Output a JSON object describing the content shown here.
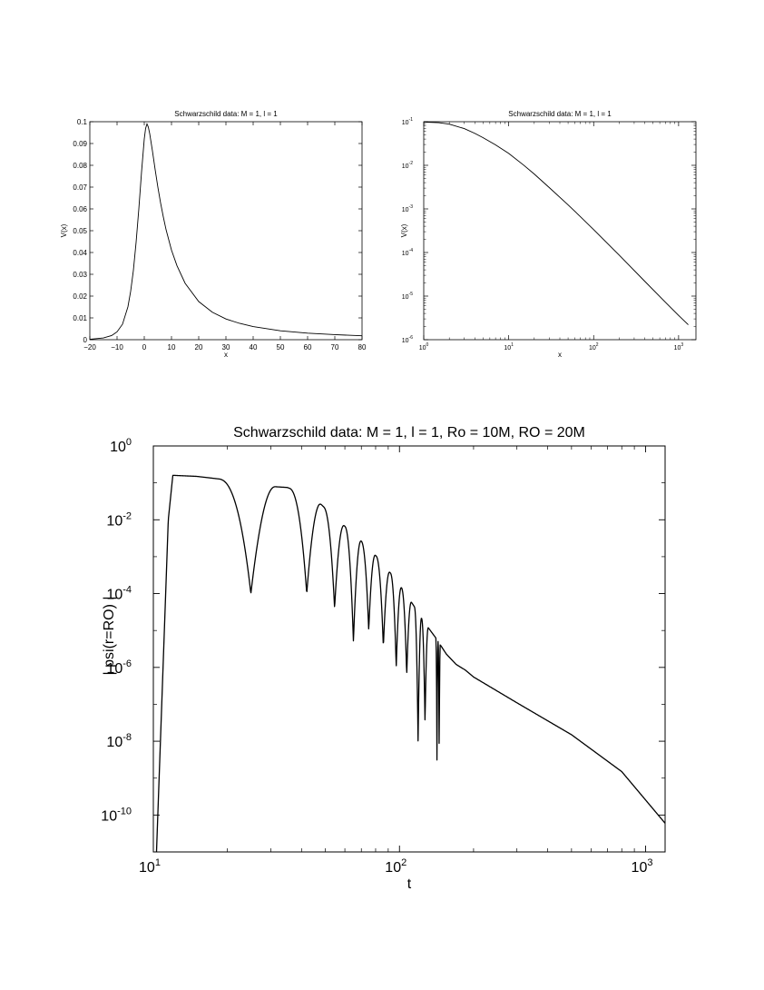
{
  "chart_data": [
    {
      "type": "line",
      "title": "Schwarzschild data: M = 1, l = 1",
      "xlabel": "x",
      "ylabel": "V(x)",
      "xscale": "linear",
      "yscale": "linear",
      "xlim": [
        -20,
        80
      ],
      "ylim": [
        0,
        0.1
      ],
      "xticks": [
        "−20",
        "−10",
        "0",
        "10",
        "20",
        "30",
        "40",
        "50",
        "60",
        "70",
        "80"
      ],
      "yticks": [
        "0",
        "0.01",
        "0.02",
        "0.03",
        "0.04",
        "0.05",
        "0.06",
        "0.07",
        "0.08",
        "0.09",
        "0.1"
      ],
      "grid": false,
      "series": [
        {
          "x": [
            -20,
            -15,
            -12,
            -10,
            -8,
            -6,
            -5,
            -4,
            -3,
            -2,
            -1,
            0,
            0.5,
            1,
            1.5,
            2,
            3,
            4,
            5,
            6,
            7,
            8,
            10,
            12,
            15,
            20,
            25,
            30,
            35,
            40,
            50,
            60,
            70,
            80
          ],
          "y": [
            0.0002,
            0.0008,
            0.0019,
            0.0036,
            0.0071,
            0.0151,
            0.0222,
            0.0318,
            0.0447,
            0.06,
            0.077,
            0.0921,
            0.097,
            0.099,
            0.0975,
            0.0945,
            0.0866,
            0.078,
            0.0699,
            0.0627,
            0.0563,
            0.0505,
            0.0411,
            0.034,
            0.0259,
            0.0175,
            0.0126,
            0.0095,
            0.0075,
            0.006,
            0.0041,
            0.003,
            0.0023,
            0.0018
          ]
        }
      ]
    },
    {
      "type": "line",
      "title": "Schwarzschild data: M = 1, l = 1",
      "xlabel": "x",
      "ylabel": "V(x)",
      "xscale": "log",
      "yscale": "log",
      "xlim": [
        1,
        1600
      ],
      "ylim": [
        1e-06,
        0.1
      ],
      "xtick_exponents": [
        "0",
        "1",
        "2",
        "3"
      ],
      "ytick_exponents": [
        "-6",
        "-5",
        "-4",
        "-3",
        "-2",
        "-1"
      ],
      "tick_base": "10",
      "grid": false,
      "series": [
        {
          "x": [
            1,
            1.5,
            2,
            3,
            4,
            5,
            7,
            10,
            15,
            20,
            30,
            50,
            70,
            100,
            200,
            400,
            700,
            1000,
            1300
          ],
          "y": [
            0.098,
            0.095,
            0.088,
            0.0695,
            0.054,
            0.043,
            0.0295,
            0.0188,
            0.0101,
            0.0063,
            0.00309,
            0.00124,
            0.00066,
            0.000335,
            8.7e-05,
            2.18e-05,
            7.2e-06,
            3.6e-06,
            2.2e-06
          ]
        }
      ]
    },
    {
      "type": "line",
      "title": "Schwarzschild data: M = 1, l = 1, Ro = 10M, RO = 20M",
      "xlabel": "t",
      "ylabel": "| psi(r=RO) |",
      "xscale": "log",
      "yscale": "log",
      "xlim": [
        10,
        1200
      ],
      "ylim": [
        1e-11,
        1
      ],
      "xtick_exponents": [
        "1",
        "2",
        "3"
      ],
      "ytick_exponents": [
        "0",
        "-2",
        "-4",
        "-6",
        "-8",
        "-10"
      ],
      "tick_base": "10",
      "grid": false,
      "envelope": {
        "t": [
          10.3,
          11.5,
          12,
          15,
          20,
          25,
          30,
          35,
          42,
          47,
          55,
          65,
          75,
          85,
          95,
          105,
          115,
          125,
          140,
          155,
          170,
          185,
          200,
          300,
          500,
          800,
          1200
        ],
        "amp": [
          1e-11,
          0.01,
          0.16,
          0.15,
          0.12,
          0.09,
          0.08,
          0.075,
          0.048,
          0.03,
          0.011,
          0.0042,
          0.0017,
          0.0007,
          0.00027,
          0.00011,
          4.4e-05,
          1.8e-05,
          6.5e-06,
          2.3e-06,
          1.2e-06,
          8.5e-07,
          5.5e-07,
          1.1e-07,
          1.5e-08,
          1.5e-09,
          6e-11
        ]
      },
      "minima": [
        {
          "t": 24.9,
          "y": 0.0001
        },
        {
          "t": 42,
          "y": 0.0001
        },
        {
          "t": 54.5,
          "y": 4e-05
        },
        {
          "t": 65,
          "y": 5e-06
        },
        {
          "t": 75,
          "y": 1e-05
        },
        {
          "t": 86,
          "y": 3.5e-06
        },
        {
          "t": 97,
          "y": 1e-06
        },
        {
          "t": 107,
          "y": 6e-07
        },
        {
          "t": 119,
          "y": 1e-08
        },
        {
          "t": 127,
          "y": 3e-08
        },
        {
          "t": 142,
          "y": 3e-09
        },
        {
          "t": 145,
          "y": 4e-09
        }
      ]
    }
  ]
}
